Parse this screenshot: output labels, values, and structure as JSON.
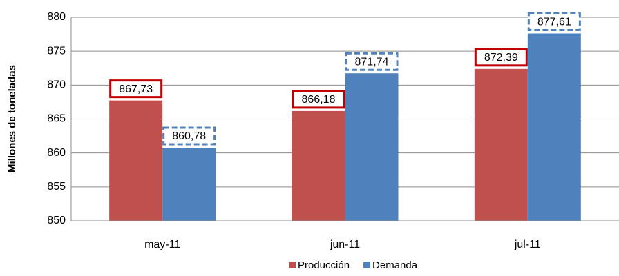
{
  "chart_data": {
    "type": "bar",
    "ylabel": "Millones de toneladas",
    "categories": [
      "may-11",
      "jun-11",
      "jul-11"
    ],
    "series": [
      {
        "name": "Producción",
        "color": "#c0504d",
        "values": [
          867.73,
          866.18,
          872.39
        ],
        "value_labels": [
          "867,73",
          "866,18",
          "872,39"
        ],
        "label_border": "#c00000",
        "label_border_style": "solid"
      },
      {
        "name": "Demanda",
        "color": "#4f81bd",
        "values": [
          860.78,
          871.74,
          877.61
        ],
        "value_labels": [
          "860,78",
          "871,74",
          "877,61"
        ],
        "label_border": "#4f81bd",
        "label_border_style": "dashed"
      }
    ],
    "ylim": [
      850,
      880
    ],
    "yticks": [
      850,
      855,
      860,
      865,
      870,
      875,
      880
    ],
    "grid": true,
    "legend": "bottom"
  }
}
